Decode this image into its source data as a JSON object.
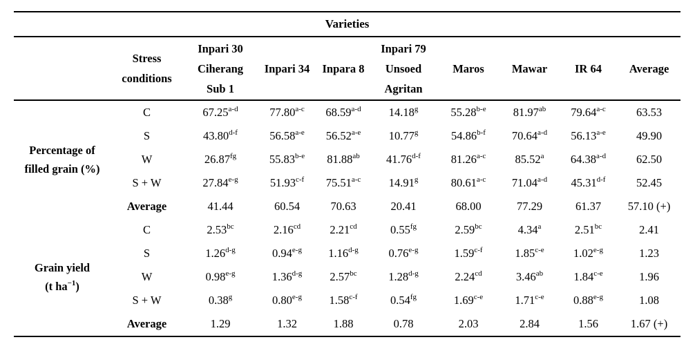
{
  "page": {
    "background": "#ffffff",
    "text_color": "#000000"
  },
  "table": {
    "title": "Varieties",
    "stress_header": [
      "Stress",
      "conditions"
    ],
    "variety_headers": [
      [
        "Inpari 30",
        "Ciherang",
        "Sub 1"
      ],
      [
        "Inpari 34"
      ],
      [
        "Inpara 8"
      ],
      [
        "Inpari 79",
        "Unsoed",
        "Agritan"
      ],
      [
        "Maros"
      ],
      [
        "Mawar"
      ],
      [
        "IR 64"
      ],
      [
        "Average"
      ]
    ],
    "groups": [
      {
        "label": [
          {
            "t": "Percentage of"
          },
          {
            "t": "filled grain (%)"
          }
        ],
        "rows": [
          {
            "stress": "C",
            "bold": false,
            "cells": [
              {
                "v": "67.25",
                "s": "a-d"
              },
              {
                "v": "77.80",
                "s": "a-c"
              },
              {
                "v": "68.59",
                "s": "a-d"
              },
              {
                "v": "14.18",
                "s": "g"
              },
              {
                "v": "55.28",
                "s": "b-e"
              },
              {
                "v": "81.97",
                "s": "ab"
              },
              {
                "v": "79.64",
                "s": "a-c"
              },
              {
                "v": "63.53",
                "s": ""
              }
            ]
          },
          {
            "stress": "S",
            "bold": false,
            "cells": [
              {
                "v": "43.80",
                "s": "d-f"
              },
              {
                "v": "56.58",
                "s": "a-e"
              },
              {
                "v": "56.52",
                "s": "a-e"
              },
              {
                "v": "10.77",
                "s": "g"
              },
              {
                "v": "54.86",
                "s": "b-f"
              },
              {
                "v": "70.64",
                "s": "a-d"
              },
              {
                "v": "56.13",
                "s": "a-e"
              },
              {
                "v": "49.90",
                "s": ""
              }
            ]
          },
          {
            "stress": "W",
            "bold": false,
            "cells": [
              {
                "v": "26.87",
                "s": "fg"
              },
              {
                "v": "55.83",
                "s": "b-e"
              },
              {
                "v": "81.88",
                "s": "ab"
              },
              {
                "v": "41.76",
                "s": "d-f"
              },
              {
                "v": "81.26",
                "s": "a-c"
              },
              {
                "v": "85.52",
                "s": "a"
              },
              {
                "v": "64.38",
                "s": "a-d"
              },
              {
                "v": "62.50",
                "s": ""
              }
            ]
          },
          {
            "stress": "S + W",
            "bold": false,
            "cells": [
              {
                "v": "27.84",
                "s": "e-g"
              },
              {
                "v": "51.93",
                "s": "c-f"
              },
              {
                "v": "75.51",
                "s": "a-c"
              },
              {
                "v": "14.91",
                "s": "g"
              },
              {
                "v": "80.61",
                "s": "a-c"
              },
              {
                "v": "71.04",
                "s": "a-d"
              },
              {
                "v": "45.31",
                "s": "d-f"
              },
              {
                "v": "52.45",
                "s": ""
              }
            ]
          },
          {
            "stress": "Average",
            "bold": true,
            "cells": [
              {
                "v": "41.44",
                "s": ""
              },
              {
                "v": "60.54",
                "s": ""
              },
              {
                "v": "70.63",
                "s": ""
              },
              {
                "v": "20.41",
                "s": ""
              },
              {
                "v": "68.00",
                "s": ""
              },
              {
                "v": "77.29",
                "s": ""
              },
              {
                "v": "61.37",
                "s": ""
              },
              {
                "v": "57.10 (+)",
                "s": ""
              }
            ]
          }
        ]
      },
      {
        "label": [
          {
            "t": "Grain yield"
          },
          {
            "t": "(t ha",
            "sup": "−1",
            "post": ")"
          }
        ],
        "rows": [
          {
            "stress": "C",
            "bold": false,
            "cells": [
              {
                "v": "2.53",
                "s": "bc"
              },
              {
                "v": "2.16",
                "s": "cd"
              },
              {
                "v": "2.21",
                "s": "cd"
              },
              {
                "v": "0.55",
                "s": "fg"
              },
              {
                "v": "2.59",
                "s": "bc"
              },
              {
                "v": "4.34",
                "s": "a"
              },
              {
                "v": "2.51",
                "s": "bc"
              },
              {
                "v": "2.41",
                "s": ""
              }
            ]
          },
          {
            "stress": "S",
            "bold": false,
            "cells": [
              {
                "v": "1.26",
                "s": "d-g"
              },
              {
                "v": "0.94",
                "s": "e-g"
              },
              {
                "v": "1.16",
                "s": "d-g"
              },
              {
                "v": "0.76",
                "s": "e-g"
              },
              {
                "v": "1.59",
                "s": "c-f"
              },
              {
                "v": "1.85",
                "s": "c-e"
              },
              {
                "v": "1.02",
                "s": "e-g"
              },
              {
                "v": "1.23",
                "s": ""
              }
            ]
          },
          {
            "stress": "W",
            "bold": false,
            "cells": [
              {
                "v": "0.98",
                "s": "e-g"
              },
              {
                "v": "1.36",
                "s": "d-g"
              },
              {
                "v": "2.57",
                "s": "bc"
              },
              {
                "v": "1.28",
                "s": "d-g"
              },
              {
                "v": "2.24",
                "s": "cd"
              },
              {
                "v": "3.46",
                "s": "ab"
              },
              {
                "v": "1.84",
                "s": "c-e"
              },
              {
                "v": "1.96",
                "s": ""
              }
            ]
          },
          {
            "stress": "S + W",
            "bold": false,
            "cells": [
              {
                "v": "0.38",
                "s": "g"
              },
              {
                "v": "0.80",
                "s": "e-g"
              },
              {
                "v": "1.58",
                "s": "c-f"
              },
              {
                "v": "0.54",
                "s": "fg"
              },
              {
                "v": "1.69",
                "s": "c-e"
              },
              {
                "v": "1.71",
                "s": "c-e"
              },
              {
                "v": "0.88",
                "s": "e-g"
              },
              {
                "v": "1.08",
                "s": ""
              }
            ]
          },
          {
            "stress": "Average",
            "bold": true,
            "cells": [
              {
                "v": "1.29",
                "s": ""
              },
              {
                "v": "1.32",
                "s": ""
              },
              {
                "v": "1.88",
                "s": ""
              },
              {
                "v": "0.78",
                "s": ""
              },
              {
                "v": "2.03",
                "s": ""
              },
              {
                "v": "2.84",
                "s": ""
              },
              {
                "v": "1.56",
                "s": ""
              },
              {
                "v": "1.67 (+)",
                "s": ""
              }
            ]
          }
        ]
      }
    ]
  }
}
